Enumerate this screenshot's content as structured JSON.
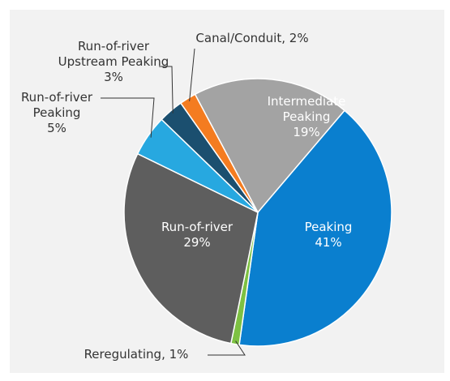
{
  "chart_data": {
    "type": "pie",
    "categories": [
      "Intermediate Peaking",
      "Peaking",
      "Reregulating",
      "Run-of-river",
      "Run-of-river Peaking",
      "Run-of-river Upstream Peaking",
      "Canal/Conduit"
    ],
    "values": [
      19,
      41,
      1,
      29,
      5,
      3,
      2
    ],
    "value_labels": [
      "19%",
      "41%",
      "1%",
      "29%",
      "5%",
      "3%",
      "2%"
    ],
    "colors": [
      "#a3a3a3",
      "#0a7fcf",
      "#7dc142",
      "#5e5e5e",
      "#27a8e0",
      "#1b4f6f",
      "#f47c20"
    ]
  }
}
